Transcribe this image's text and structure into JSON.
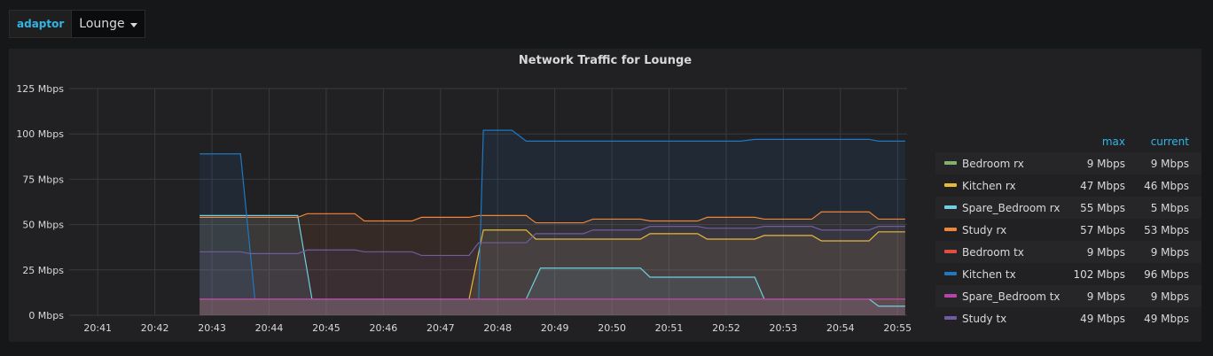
{
  "variable": {
    "label": "adaptor",
    "value": "Lounge"
  },
  "panel": {
    "title": "Network Traffic for Lounge"
  },
  "legend": {
    "max_header": "max",
    "current_header": "current"
  },
  "chart_data": {
    "type": "area",
    "title": "Network Traffic for Lounge",
    "yunit": "Mbps",
    "ylim": [
      0,
      125
    ],
    "yticks": [
      0,
      25,
      50,
      75,
      100,
      125
    ],
    "ytick_labels": [
      "0 Mbps",
      "25 Mbps",
      "50 Mbps",
      "75 Mbps",
      "100 Mbps",
      "125 Mbps"
    ],
    "xlim": [
      "20:40:30",
      "20:55:10"
    ],
    "xticks": [
      "20:41",
      "20:42",
      "20:43",
      "20:44",
      "20:45",
      "20:46",
      "20:47",
      "20:48",
      "20:49",
      "20:50",
      "20:51",
      "20:52",
      "20:53",
      "20:54",
      "20:55"
    ],
    "grid": true,
    "legend_position": "right",
    "series": [
      {
        "name": "Bedroom rx",
        "color": "#7eb26d",
        "max": "9 Mbps",
        "current": "9 Mbps",
        "points": [
          [
            "20:42:47",
            9
          ],
          [
            "20:55:08",
            9
          ]
        ]
      },
      {
        "name": "Kitchen rx",
        "color": "#eab839",
        "max": "47 Mbps",
        "current": "46 Mbps",
        "points": [
          [
            "20:42:47",
            9
          ],
          [
            "20:47:30",
            9
          ],
          [
            "20:47:45",
            47
          ],
          [
            "20:48:30",
            47
          ],
          [
            "20:48:40",
            42
          ],
          [
            "20:50:30",
            42
          ],
          [
            "20:50:40",
            45
          ],
          [
            "20:51:30",
            45
          ],
          [
            "20:51:40",
            42
          ],
          [
            "20:52:30",
            42
          ],
          [
            "20:52:40",
            44
          ],
          [
            "20:53:30",
            44
          ],
          [
            "20:53:40",
            41
          ],
          [
            "20:54:30",
            41
          ],
          [
            "20:54:40",
            46
          ],
          [
            "20:55:08",
            46
          ]
        ]
      },
      {
        "name": "Spare_Bedroom rx",
        "color": "#6ed0e0",
        "max": "55 Mbps",
        "current": "5 Mbps",
        "points": [
          [
            "20:42:47",
            55
          ],
          [
            "20:44:30",
            55
          ],
          [
            "20:44:45",
            9
          ],
          [
            "20:48:30",
            9
          ],
          [
            "20:48:45",
            26
          ],
          [
            "20:50:30",
            26
          ],
          [
            "20:50:40",
            21
          ],
          [
            "20:52:30",
            21
          ],
          [
            "20:52:40",
            9
          ],
          [
            "20:54:30",
            9
          ],
          [
            "20:54:40",
            5
          ],
          [
            "20:55:08",
            5
          ]
        ]
      },
      {
        "name": "Study rx",
        "color": "#ef843c",
        "max": "57 Mbps",
        "current": "53 Mbps",
        "points": [
          [
            "20:42:47",
            54
          ],
          [
            "20:44:30",
            54
          ],
          [
            "20:44:40",
            56
          ],
          [
            "20:45:30",
            56
          ],
          [
            "20:45:40",
            52
          ],
          [
            "20:46:30",
            52
          ],
          [
            "20:46:40",
            54
          ],
          [
            "20:47:30",
            54
          ],
          [
            "20:47:40",
            55
          ],
          [
            "20:48:30",
            55
          ],
          [
            "20:48:40",
            51
          ],
          [
            "20:49:30",
            51
          ],
          [
            "20:49:40",
            53
          ],
          [
            "20:50:30",
            53
          ],
          [
            "20:50:40",
            52
          ],
          [
            "20:51:30",
            52
          ],
          [
            "20:51:40",
            54
          ],
          [
            "20:52:30",
            54
          ],
          [
            "20:52:40",
            53
          ],
          [
            "20:53:30",
            53
          ],
          [
            "20:53:40",
            57
          ],
          [
            "20:54:30",
            57
          ],
          [
            "20:54:40",
            53
          ],
          [
            "20:55:08",
            53
          ]
        ]
      },
      {
        "name": "Bedroom tx",
        "color": "#e24d42",
        "max": "9 Mbps",
        "current": "9 Mbps",
        "points": [
          [
            "20:42:47",
            9
          ],
          [
            "20:55:08",
            9
          ]
        ]
      },
      {
        "name": "Kitchen tx",
        "color": "#1f78c1",
        "max": "102 Mbps",
        "current": "96 Mbps",
        "points": [
          [
            "20:42:47",
            89
          ],
          [
            "20:43:30",
            89
          ],
          [
            "20:43:45",
            9
          ],
          [
            "20:47:40",
            9
          ],
          [
            "20:47:45",
            102
          ],
          [
            "20:48:15",
            102
          ],
          [
            "20:48:30",
            96
          ],
          [
            "20:52:15",
            96
          ],
          [
            "20:52:30",
            97
          ],
          [
            "20:54:30",
            97
          ],
          [
            "20:54:40",
            96
          ],
          [
            "20:55:08",
            96
          ]
        ]
      },
      {
        "name": "Spare_Bedroom tx",
        "color": "#ba43a9",
        "max": "9 Mbps",
        "current": "9 Mbps",
        "points": [
          [
            "20:42:47",
            9
          ],
          [
            "20:55:08",
            9
          ]
        ]
      },
      {
        "name": "Study tx",
        "color": "#705da0",
        "max": "49 Mbps",
        "current": "49 Mbps",
        "points": [
          [
            "20:42:47",
            35
          ],
          [
            "20:43:30",
            35
          ],
          [
            "20:43:40",
            34
          ],
          [
            "20:44:30",
            34
          ],
          [
            "20:44:40",
            36
          ],
          [
            "20:45:30",
            36
          ],
          [
            "20:45:40",
            35
          ],
          [
            "20:46:30",
            35
          ],
          [
            "20:46:40",
            33
          ],
          [
            "20:47:30",
            33
          ],
          [
            "20:47:40",
            40
          ],
          [
            "20:48:30",
            40
          ],
          [
            "20:48:40",
            45
          ],
          [
            "20:49:30",
            45
          ],
          [
            "20:49:40",
            47
          ],
          [
            "20:50:30",
            47
          ],
          [
            "20:50:40",
            49
          ],
          [
            "20:51:30",
            49
          ],
          [
            "20:51:40",
            48
          ],
          [
            "20:52:30",
            48
          ],
          [
            "20:52:40",
            49
          ],
          [
            "20:53:30",
            49
          ],
          [
            "20:53:40",
            47
          ],
          [
            "20:54:30",
            47
          ],
          [
            "20:54:40",
            49
          ],
          [
            "20:55:08",
            49
          ]
        ]
      }
    ]
  }
}
